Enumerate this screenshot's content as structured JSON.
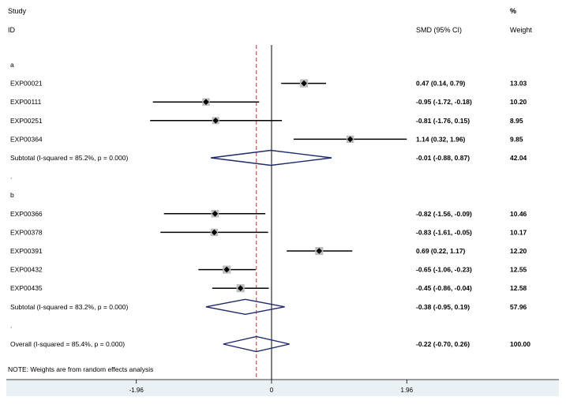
{
  "chart_data": {
    "type": "forest",
    "header": {
      "study_line1": "Study",
      "study_line2": "ID",
      "effect_label": "SMD (95% CI)",
      "weight_line1": "%",
      "weight_line2": "Weight"
    },
    "xaxis": {
      "ticks": [
        {
          "value": -1.96,
          "label": "-1.96"
        },
        {
          "value": 0,
          "label": "0"
        },
        {
          "value": 1.96,
          "label": "1.96"
        }
      ],
      "xlim": [
        -3.9,
        4.0
      ]
    },
    "overall_reference": -0.22,
    "rows": [
      {
        "kind": "group",
        "label": "a"
      },
      {
        "kind": "study",
        "label": "EXP00021",
        "smd": 0.47,
        "lo": 0.14,
        "hi": 0.79,
        "ci_text": "0.47 (0.14, 0.79)",
        "weight": "13.03"
      },
      {
        "kind": "study",
        "label": "EXP00111",
        "smd": -0.95,
        "lo": -1.72,
        "hi": -0.18,
        "ci_text": "-0.95 (-1.72, -0.18)",
        "weight": "10.20"
      },
      {
        "kind": "study",
        "label": "EXP00251",
        "smd": -0.81,
        "lo": -1.76,
        "hi": 0.15,
        "ci_text": "-0.81 (-1.76, 0.15)",
        "weight": "8.95"
      },
      {
        "kind": "study",
        "label": "EXP00364",
        "smd": 1.14,
        "lo": 0.32,
        "hi": 1.96,
        "ci_text": "1.14 (0.32, 1.96)",
        "weight": "9.85"
      },
      {
        "kind": "subtotal",
        "label": "Subtotal  (I-squared = 85.2%, p = 0.000)",
        "smd": -0.01,
        "lo": -0.88,
        "hi": 0.87,
        "ci_text": "-0.01 (-0.88, 0.87)",
        "weight": "42.04"
      },
      {
        "kind": "spacer",
        "label": "."
      },
      {
        "kind": "group",
        "label": "b"
      },
      {
        "kind": "study",
        "label": "EXP00366",
        "smd": -0.82,
        "lo": -1.56,
        "hi": -0.09,
        "ci_text": "-0.82 (-1.56, -0.09)",
        "weight": "10.46"
      },
      {
        "kind": "study",
        "label": "EXP00378",
        "smd": -0.83,
        "lo": -1.61,
        "hi": -0.05,
        "ci_text": "-0.83 (-1.61, -0.05)",
        "weight": "10.17"
      },
      {
        "kind": "study",
        "label": "EXP00391",
        "smd": 0.69,
        "lo": 0.22,
        "hi": 1.17,
        "ci_text": "0.69 (0.22, 1.17)",
        "weight": "12.20"
      },
      {
        "kind": "study",
        "label": "EXP00432",
        "smd": -0.65,
        "lo": -1.06,
        "hi": -0.23,
        "ci_text": "-0.65 (-1.06, -0.23)",
        "weight": "12.55"
      },
      {
        "kind": "study",
        "label": "EXP00435",
        "smd": -0.45,
        "lo": -0.86,
        "hi": -0.04,
        "ci_text": "-0.45 (-0.86, -0.04)",
        "weight": "12.58"
      },
      {
        "kind": "subtotal",
        "label": "Subtotal  (I-squared = 83.2%, p = 0.000)",
        "smd": -0.38,
        "lo": -0.95,
        "hi": 0.19,
        "ci_text": "-0.38 (-0.95, 0.19)",
        "weight": "57.96"
      },
      {
        "kind": "spacer",
        "label": "."
      },
      {
        "kind": "overall",
        "label": "Overall  (I-squared = 85.4%, p = 0.000)",
        "smd": -0.22,
        "lo": -0.7,
        "hi": 0.26,
        "ci_text": "-0.22 (-0.70, 0.26)",
        "weight": "100.00"
      }
    ],
    "note": "NOTE: Weights are from random effects analysis",
    "colors": {
      "line": "#000000",
      "diamond": "#1f2a6b",
      "reference": "#c0392b",
      "box": "#bdbdbd",
      "axis_band": "#eaf1f4"
    }
  }
}
